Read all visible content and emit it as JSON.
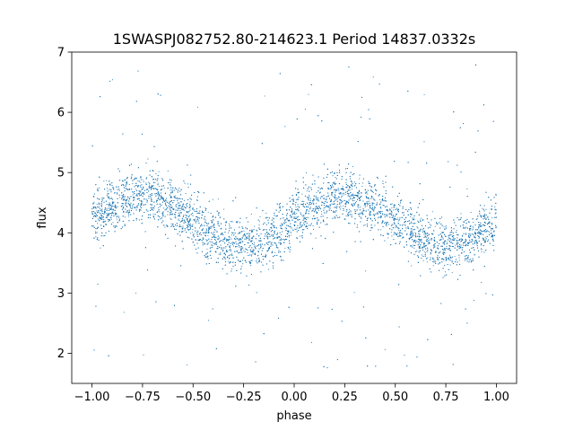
{
  "chart_data": {
    "type": "scatter",
    "title": "1SWASPJ082752.80-214623.1 Period 14837.0332s",
    "xlabel": "phase",
    "ylabel": "flux",
    "xlim": [
      -1.1,
      1.1
    ],
    "ylim": [
      1.5,
      7.0
    ],
    "xticks": [
      -1.0,
      -0.75,
      -0.5,
      -0.25,
      0.0,
      0.25,
      0.5,
      0.75,
      1.0
    ],
    "xtick_labels": [
      "−1.00",
      "−0.75",
      "−0.50",
      "−0.25",
      "0.00",
      "0.25",
      "0.50",
      "0.75",
      "1.00"
    ],
    "yticks": [
      2,
      3,
      4,
      5,
      6,
      7
    ],
    "ytick_labels": [
      "2",
      "3",
      "4",
      "5",
      "6",
      "7"
    ],
    "grid": false,
    "legend": "none",
    "marker_color": "#1f77b4",
    "series": [
      {
        "phase_range": [
          -1.0,
          1.0
        ],
        "point_count": 9000,
        "mean_flux": 4.2,
        "amplitude": 0.42,
        "peak_phase": 0.25,
        "trough_phase": -0.25,
        "scatter_sigma": 0.22,
        "outlier_range": [
          1.7,
          6.8
        ],
        "sampled_curve": [
          {
            "x": -1.0,
            "y": 4.2
          },
          {
            "x": -0.75,
            "y": 4.62
          },
          {
            "x": -0.5,
            "y": 4.2
          },
          {
            "x": -0.25,
            "y": 3.78
          },
          {
            "x": 0.0,
            "y": 4.2
          },
          {
            "x": 0.25,
            "y": 4.62
          },
          {
            "x": 0.5,
            "y": 4.2
          },
          {
            "x": 0.75,
            "y": 3.78
          },
          {
            "x": 1.0,
            "y": 4.2
          }
        ]
      }
    ]
  }
}
